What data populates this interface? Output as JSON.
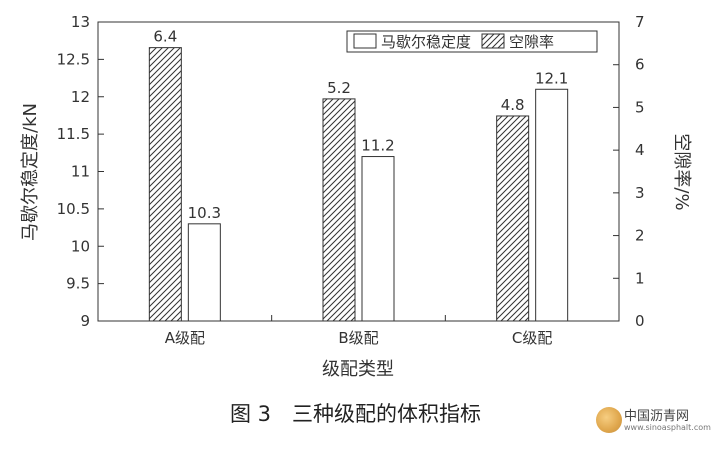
{
  "chart_data": {
    "type": "bar",
    "categories": [
      "A级配",
      "B级配",
      "C级配"
    ],
    "series": [
      {
        "name": "空隙率",
        "axis": "right",
        "pattern": "hatched",
        "values": [
          6.4,
          5.2,
          4.8
        ]
      },
      {
        "name": "马歇尔稳定度",
        "axis": "left",
        "pattern": "hollow",
        "values": [
          10.3,
          11.2,
          12.1
        ]
      }
    ],
    "xlabel": "级配类型",
    "ylabel": "马歇尔稳定度/kN",
    "y2label": "空隙率/%",
    "ylim": [
      9,
      13
    ],
    "y2lim": [
      0,
      7
    ],
    "yticks": [
      "9",
      "9.5",
      "10",
      "10.5",
      "11",
      "11.5",
      "12",
      "12.5",
      "13"
    ],
    "y2ticks": [
      "0",
      "1",
      "2",
      "3",
      "4",
      "5",
      "6",
      "7"
    ],
    "legend_position": "top-right",
    "grid": false
  },
  "caption": "图 3　三种级配的体积指标",
  "watermark": {
    "title": "中国沥青网",
    "url": "www.sinoasphalt.com"
  }
}
